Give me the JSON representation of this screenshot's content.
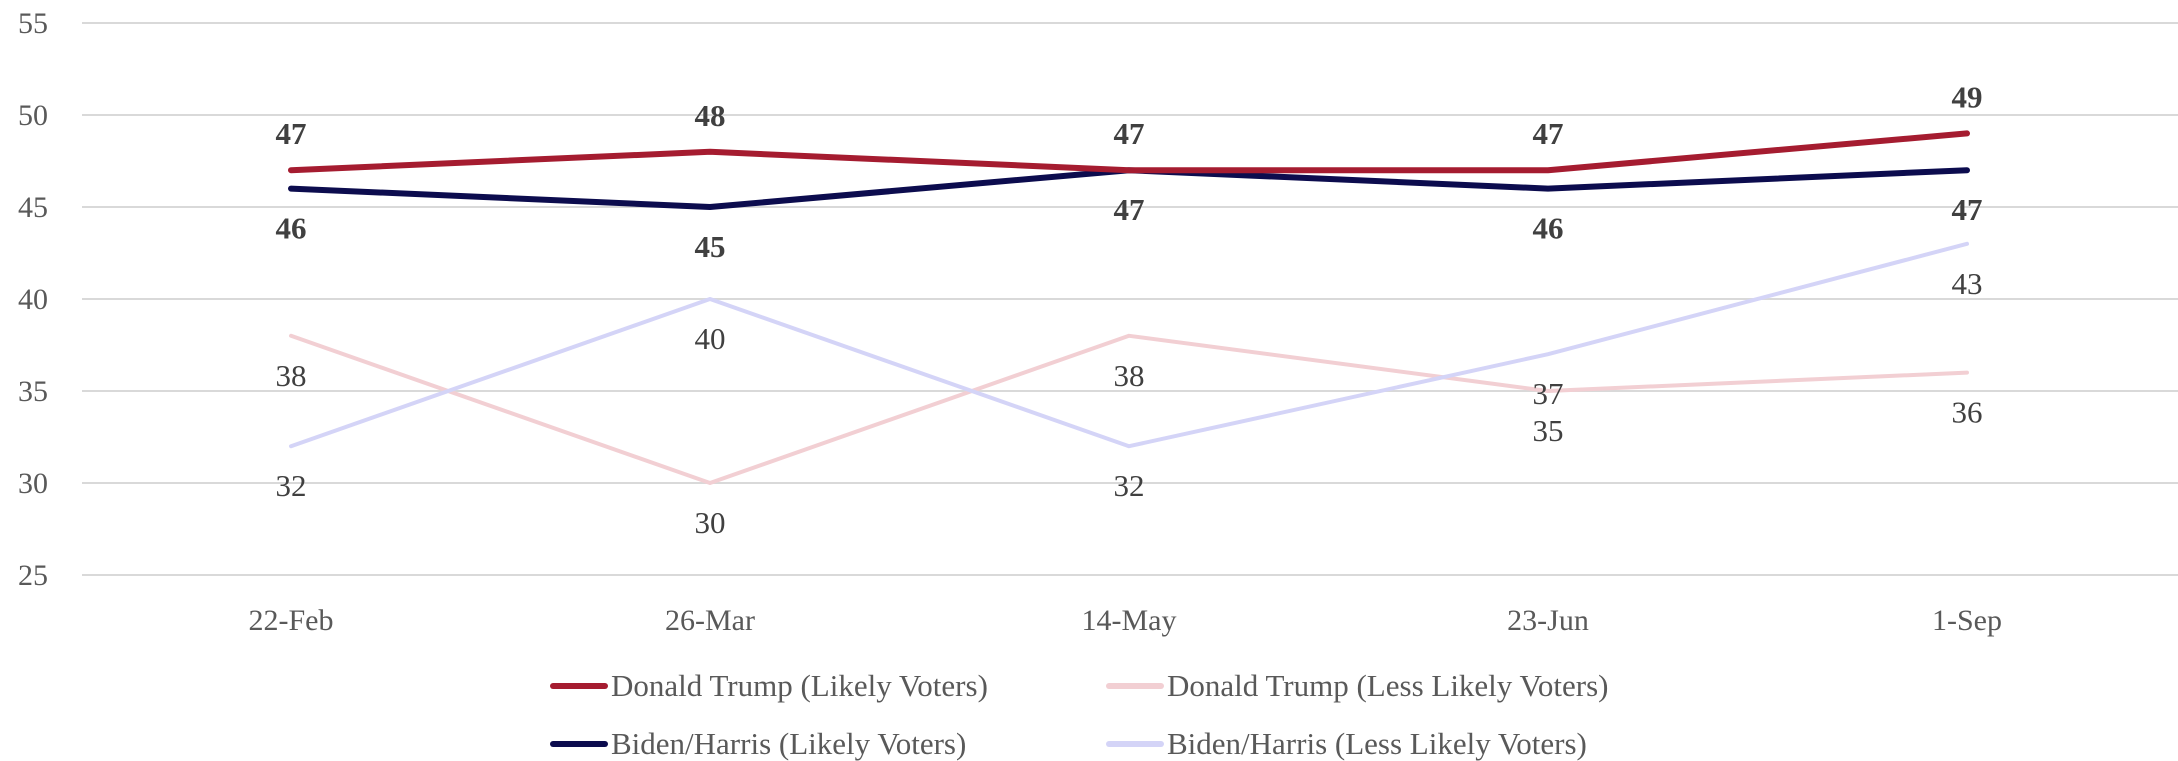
{
  "chart_data": {
    "type": "line",
    "categories": [
      "22-Feb",
      "26-Mar",
      "14-May",
      "23-Jun",
      "1-Sep"
    ],
    "ylim": [
      25,
      55
    ],
    "yticks": [
      25,
      30,
      35,
      40,
      45,
      50,
      55
    ],
    "grid": true,
    "legend_position": "bottom",
    "series": [
      {
        "name": "Donald Trump (Likely Voters)",
        "values": [
          47,
          48,
          47,
          47,
          49
        ],
        "color": "#a51c30",
        "width": 6,
        "label_pos": "above",
        "label_bold": true
      },
      {
        "name": "Donald Trump (Less Likely Voters)",
        "values": [
          38,
          30,
          38,
          35,
          36
        ],
        "color": "#f2cfd3",
        "width": 4,
        "label_pos": "below",
        "label_bold": false
      },
      {
        "name": "Biden/Harris (Likely Voters)",
        "values": [
          46,
          45,
          47,
          46,
          47
        ],
        "color": "#0c0c4e",
        "width": 6,
        "label_pos": "below",
        "label_bold": true
      },
      {
        "name": "Biden/Harris (Less Likely Voters)",
        "values": [
          32,
          40,
          32,
          37,
          43
        ],
        "color": "#d4d4f7",
        "width": 4,
        "label_pos": "below",
        "label_bold": false
      }
    ]
  }
}
